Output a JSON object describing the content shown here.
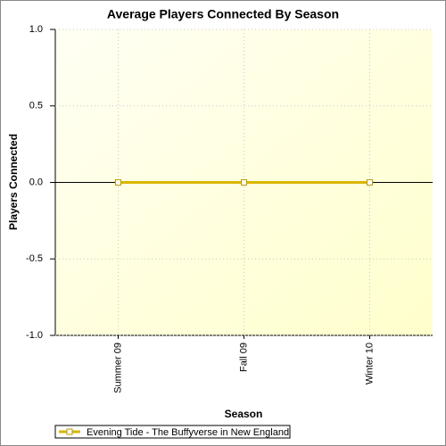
{
  "chart_data": {
    "type": "line",
    "title": "Average Players Connected By Season",
    "x_label": "Season",
    "y_label": "Players Connected",
    "categories": [
      "Summer 09",
      "Fall 09",
      "Winter 10"
    ],
    "series": [
      {
        "name": "Evening Tide - The Buffyverse in New England",
        "color": "#d9b600",
        "values": [
          0,
          0,
          0
        ]
      }
    ],
    "ylim": [
      -1,
      1
    ],
    "yticks": [
      {
        "value": -1,
        "label": "-1.0"
      },
      {
        "value": -0.5,
        "label": "-0.5"
      },
      {
        "value": 0,
        "label": "0.0"
      },
      {
        "value": 0.5,
        "label": "0.5"
      },
      {
        "value": 1,
        "label": "1.0"
      }
    ],
    "grid": true,
    "legend": "bottom-left"
  }
}
